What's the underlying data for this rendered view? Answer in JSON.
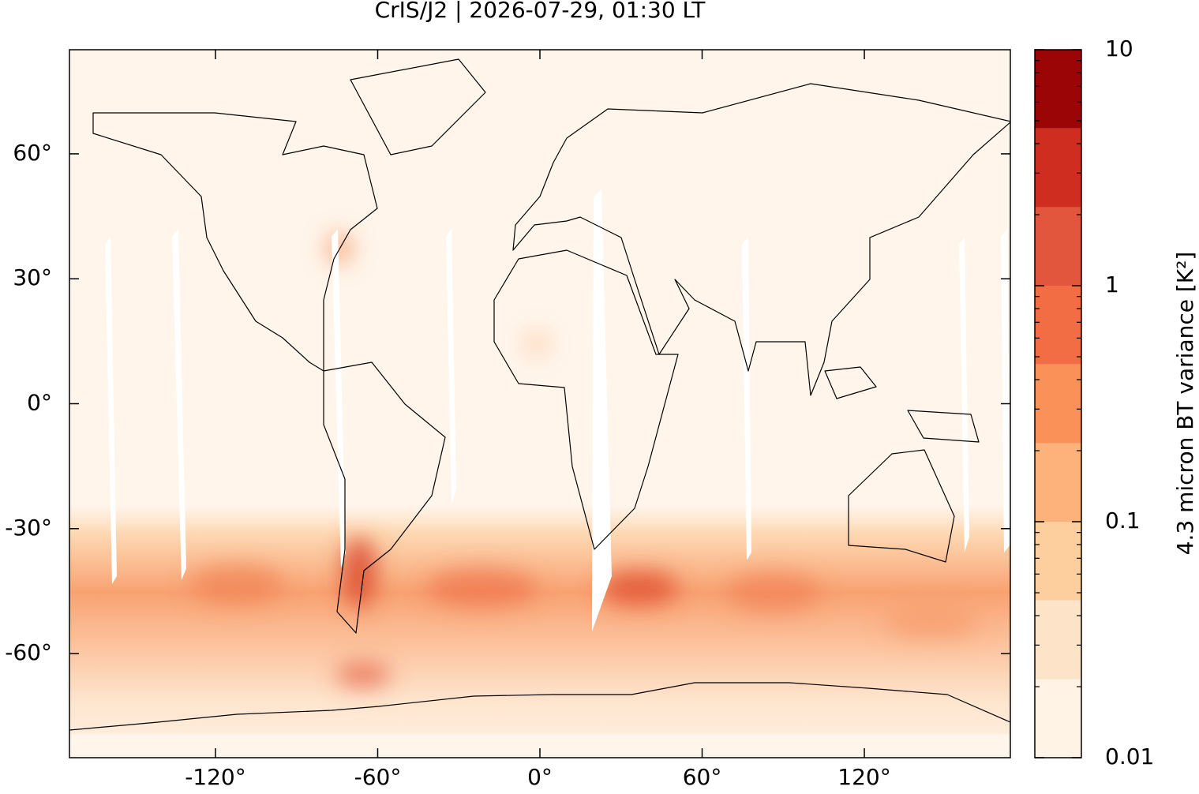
{
  "chart_data": {
    "type": "map",
    "title": "CrIS/J2 | 2026-07-29, 01:30 LT",
    "xlim": [
      -174,
      174
    ],
    "ylim": [
      -85,
      85
    ],
    "xticks": [
      {
        "value": -120,
        "label": "-120°"
      },
      {
        "value": -60,
        "label": "-60°"
      },
      {
        "value": 0,
        "label": "0°"
      },
      {
        "value": 60,
        "label": "60°"
      },
      {
        "value": 120,
        "label": "120°"
      }
    ],
    "yticks": [
      {
        "value": -60,
        "label": "-60°"
      },
      {
        "value": -30,
        "label": "-30°"
      },
      {
        "value": 0,
        "label": "0°"
      },
      {
        "value": 30,
        "label": "30°"
      },
      {
        "value": 60,
        "label": "60°"
      }
    ],
    "colorbar": {
      "label": "4.3 micron BT variance [K²]",
      "log_scale": true,
      "lim": [
        0.01,
        10
      ],
      "ticks": [
        0.01,
        0.1,
        1,
        10
      ],
      "minor_ticks": [
        0.02,
        0.03,
        0.04,
        0.05,
        0.06,
        0.07,
        0.08,
        0.09,
        0.2,
        0.3,
        0.4,
        0.5,
        0.6,
        0.7,
        0.8,
        0.9,
        2,
        3,
        4,
        5,
        6,
        7,
        8,
        9
      ],
      "levels": [
        0.01,
        0.0215,
        0.0464,
        0.1,
        0.215,
        0.464,
        1,
        2.15,
        4.64,
        10
      ],
      "colors": [
        "#fff3e6",
        "#fde3c7",
        "#fdcf9f",
        "#fcb27a",
        "#f99158",
        "#f26d43",
        "#e2563d",
        "#cf2d1f",
        "#9b0505"
      ]
    }
  }
}
